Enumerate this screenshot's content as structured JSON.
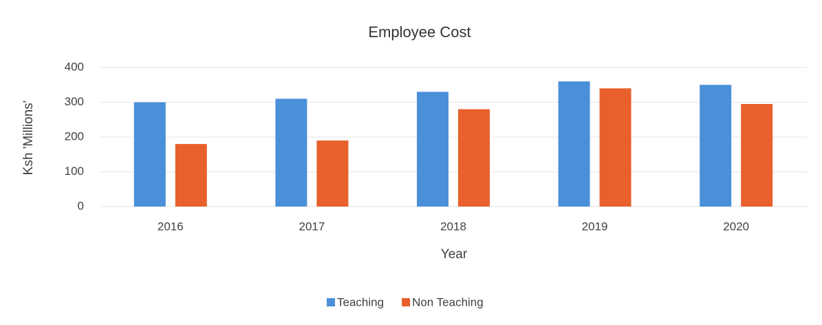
{
  "chart_data": {
    "type": "bar",
    "title": "Employee Cost",
    "x_label": "Year",
    "y_label": "Ksh 'Millions'",
    "categories": [
      "2016",
      "2017",
      "2018",
      "2019",
      "2020"
    ],
    "series": [
      {
        "name": "Teaching",
        "color": "#4a90d9",
        "values": [
          300,
          310,
          330,
          360,
          350
        ]
      },
      {
        "name": "Non Teaching",
        "color": "#e8602c",
        "values": [
          180,
          190,
          280,
          340,
          295
        ]
      }
    ],
    "ylim": [
      0,
      400
    ],
    "yticks": [
      0,
      100,
      200,
      300,
      400
    ],
    "grid": true,
    "legend": "bottom"
  }
}
